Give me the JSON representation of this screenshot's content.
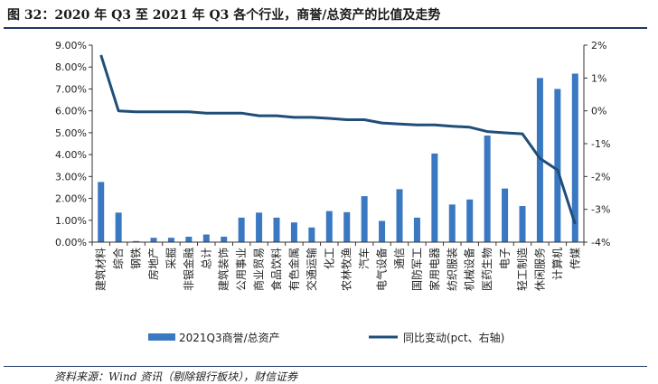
{
  "title": "图 32：2020 年 Q3 至 2021 年 Q3 各个行业，商誉/总资产的比值及走势",
  "source": "资料来源：Wind 资讯（剔除银行板块），财信证券",
  "chart_data": {
    "type": "bar+line",
    "categories": [
      "建筑材料",
      "综合",
      "钢铁",
      "房地产",
      "采掘",
      "非银金融",
      "总计",
      "建筑装饰",
      "公用事业",
      "商业贸易",
      "食品饮料",
      "有色金属",
      "交通运输",
      "化工",
      "农林牧渔",
      "汽车",
      "电气设备",
      "通信",
      "国防军工",
      "家用电器",
      "纺织服装",
      "机械设备",
      "医药生物",
      "电子",
      "轻工制造",
      "休闲服务",
      "计算机",
      "传媒"
    ],
    "series": [
      {
        "name": "2021Q3商誉/总资产",
        "type": "bar",
        "axis": "left",
        "color": "#3a78c2",
        "values": [
          2.75,
          1.35,
          0.05,
          0.2,
          0.2,
          0.25,
          0.35,
          0.25,
          1.12,
          1.35,
          1.12,
          0.9,
          0.67,
          1.42,
          1.37,
          2.1,
          0.97,
          2.42,
          1.12,
          4.05,
          1.72,
          1.95,
          4.87,
          2.45,
          1.65,
          7.5,
          7.0,
          7.7
        ]
      },
      {
        "name": "同比变动(pct、右轴)",
        "type": "line",
        "axis": "right",
        "color": "#1f4e79",
        "values": [
          1.7,
          0.0,
          -0.03,
          -0.03,
          -0.03,
          -0.03,
          -0.07,
          -0.07,
          -0.07,
          -0.15,
          -0.15,
          -0.2,
          -0.2,
          -0.23,
          -0.27,
          -0.27,
          -0.37,
          -0.4,
          -0.43,
          -0.43,
          -0.47,
          -0.5,
          -0.63,
          -0.67,
          -0.7,
          -1.45,
          -1.8,
          -3.45
        ]
      }
    ],
    "y_left": {
      "ticks": [
        "0.00%",
        "1.00%",
        "2.00%",
        "3.00%",
        "4.00%",
        "5.00%",
        "6.00%",
        "7.00%",
        "8.00%",
        "9.00%"
      ],
      "range": [
        0,
        9
      ]
    },
    "y_right": {
      "ticks": [
        "2%",
        "1%",
        "0%",
        "-1%",
        "-2%",
        "-3%",
        "-4%"
      ],
      "range": [
        -4,
        2
      ]
    },
    "legend": {
      "position": "bottom",
      "bar_label": "2021Q3商誉/总资产",
      "line_label": "同比变动(pct、右轴)"
    }
  }
}
